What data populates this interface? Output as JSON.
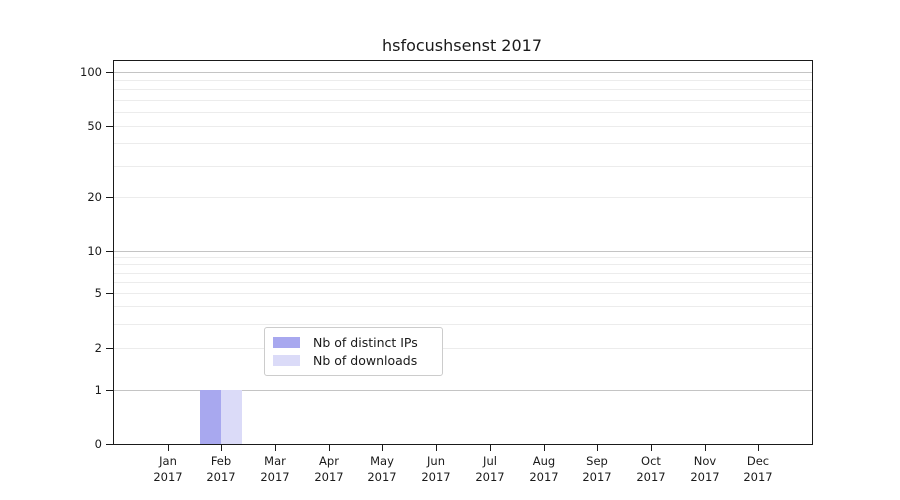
{
  "chart_data": {
    "type": "bar",
    "title": "hsfocushsenst 2017",
    "x_categories": [
      "Jan",
      "Feb",
      "Mar",
      "Apr",
      "May",
      "Jun",
      "Jul",
      "Aug",
      "Sep",
      "Oct",
      "Nov",
      "Dec"
    ],
    "x_year_suffix": "2017",
    "series": [
      {
        "name": "Nb of distinct IPs",
        "color": "#a8a8ef",
        "values": [
          0,
          1,
          0,
          0,
          0,
          0,
          0,
          0,
          0,
          0,
          0,
          0
        ]
      },
      {
        "name": "Nb of downloads",
        "color": "#dbdbf8",
        "values": [
          0,
          1,
          0,
          0,
          0,
          0,
          0,
          0,
          0,
          0,
          0,
          0
        ]
      }
    ],
    "y_ticks_labeled": [
      0,
      1,
      2,
      5,
      10,
      20,
      50,
      100
    ],
    "y_major_gridlines": [
      1,
      10,
      100
    ],
    "y_minor_gridlines": [
      2,
      3,
      4,
      5,
      6,
      7,
      8,
      9,
      20,
      30,
      40,
      50,
      60,
      70,
      80,
      90
    ],
    "ylim": [
      0,
      115
    ],
    "y_scale": "linear from 0 to 1, logarithmic above 1",
    "grid": "horizontal major and minor gridlines",
    "legend_position": "inside bottom-center",
    "colors": {
      "axis": "#1a1a1a",
      "grid_major": "#c4c4c4",
      "grid_minor": "#ececec",
      "legend_border": "#cccccc",
      "background": "#ffffff"
    }
  }
}
